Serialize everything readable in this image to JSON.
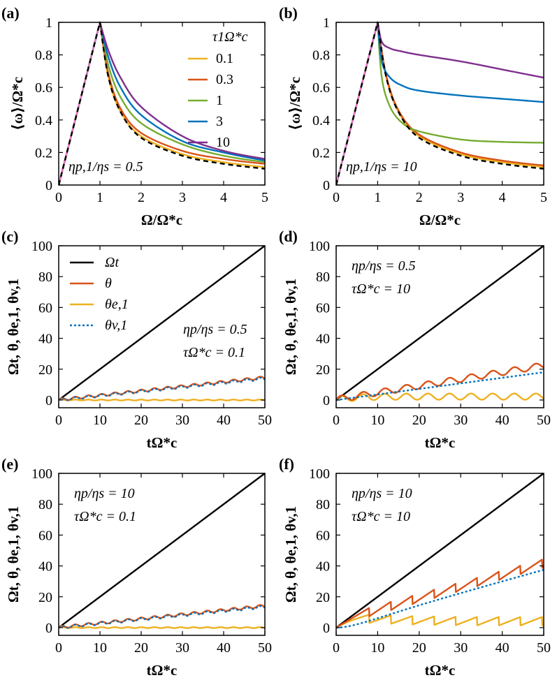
{
  "chart_data": [
    {
      "id": "a",
      "panel_label": "(a)",
      "type": "line",
      "xlabel": "Ω/Ω*c",
      "ylabel": "⟨ω⟩/Ω*c",
      "xlim": [
        0,
        5
      ],
      "ylim": [
        0,
        1
      ],
      "xticks": [
        "0",
        "1",
        "2",
        "3",
        "4",
        "5"
      ],
      "yticks": [
        "0",
        "0.2",
        "0.4",
        "0.6",
        "0.8",
        "1"
      ],
      "annotations": [
        "ηp,1/ηs = 0.5"
      ],
      "legend_title": "τ1Ω*c",
      "legend_position": "top-right",
      "series": [
        {
          "name": "0.1",
          "color": "#EDB120",
          "x": [
            0,
            1,
            1.2,
            1.5,
            2,
            3,
            4,
            5
          ],
          "y": [
            0,
            1,
            0.67,
            0.45,
            0.3,
            0.19,
            0.14,
            0.11
          ]
        },
        {
          "name": "0.3",
          "color": "#D95319",
          "x": [
            0,
            1,
            1.2,
            1.5,
            2,
            3,
            4,
            5
          ],
          "y": [
            0,
            1,
            0.69,
            0.47,
            0.32,
            0.21,
            0.16,
            0.13
          ]
        },
        {
          "name": "1",
          "color": "#77AC30",
          "x": [
            0,
            1,
            1.2,
            1.5,
            2,
            3,
            4,
            5
          ],
          "y": [
            0,
            1,
            0.74,
            0.54,
            0.38,
            0.25,
            0.18,
            0.14
          ]
        },
        {
          "name": "3",
          "color": "#0072BD",
          "x": [
            0,
            1,
            1.2,
            1.5,
            2,
            3,
            4,
            5
          ],
          "y": [
            0,
            1,
            0.79,
            0.6,
            0.43,
            0.27,
            0.2,
            0.15
          ]
        },
        {
          "name": "10",
          "color": "#7E2F8E",
          "x": [
            0,
            1,
            1.2,
            1.5,
            2,
            3,
            4,
            5
          ],
          "y": [
            0,
            1,
            0.83,
            0.66,
            0.48,
            0.3,
            0.21,
            0.16
          ]
        }
      ],
      "reference": {
        "name": "reference",
        "color": "#000000",
        "x": [
          0,
          1,
          1.2,
          1.5,
          2,
          3,
          4,
          5
        ],
        "y": [
          0,
          1,
          0.67,
          0.45,
          0.29,
          0.18,
          0.13,
          0.1
        ]
      }
    },
    {
      "id": "b",
      "panel_label": "(b)",
      "type": "line",
      "xlabel": "Ω/Ω*c",
      "ylabel": "⟨ω⟩/Ω*c",
      "xlim": [
        0,
        5
      ],
      "ylim": [
        0,
        1
      ],
      "xticks": [
        "0",
        "1",
        "2",
        "3",
        "4",
        "5"
      ],
      "yticks": [
        "0",
        "0.2",
        "0.4",
        "0.6",
        "0.8",
        "1"
      ],
      "annotations": [
        "ηp,1/ηs = 10"
      ],
      "series": [
        {
          "name": "0.1",
          "color": "#EDB120",
          "x": [
            0,
            1,
            1.2,
            1.5,
            2,
            3,
            4,
            5
          ],
          "y": [
            0,
            1,
            0.67,
            0.45,
            0.3,
            0.19,
            0.14,
            0.11
          ]
        },
        {
          "name": "0.3",
          "color": "#D95319",
          "x": [
            0,
            1,
            1.2,
            1.5,
            2,
            3,
            4,
            5
          ],
          "y": [
            0,
            1,
            0.68,
            0.46,
            0.31,
            0.2,
            0.15,
            0.12
          ]
        },
        {
          "name": "1",
          "color": "#77AC30",
          "x": [
            0,
            1,
            1.1,
            1.3,
            1.6,
            2,
            3,
            4,
            5
          ],
          "y": [
            0,
            1,
            0.66,
            0.48,
            0.38,
            0.33,
            0.28,
            0.265,
            0.26
          ]
        },
        {
          "name": "3",
          "color": "#0072BD",
          "x": [
            0,
            1,
            1.1,
            1.3,
            1.6,
            2,
            3,
            4,
            5
          ],
          "y": [
            0,
            1,
            0.76,
            0.66,
            0.61,
            0.58,
            0.55,
            0.53,
            0.51
          ]
        },
        {
          "name": "10",
          "color": "#7E2F8E",
          "x": [
            0,
            1,
            1.1,
            1.3,
            1.6,
            2,
            3,
            4,
            5
          ],
          "y": [
            0,
            1,
            0.88,
            0.84,
            0.82,
            0.8,
            0.76,
            0.71,
            0.66
          ]
        }
      ],
      "reference": {
        "name": "reference",
        "color": "#000000",
        "x": [
          0,
          1,
          1.2,
          1.5,
          2,
          3,
          4,
          5
        ],
        "y": [
          0,
          1,
          0.67,
          0.45,
          0.29,
          0.18,
          0.13,
          0.1
        ]
      }
    },
    {
      "id": "c",
      "panel_label": "(c)",
      "type": "line",
      "xlabel": "tΩ*c",
      "ylabel": "Ωt, θ, θe,1, θv,1",
      "xlim": [
        0,
        50
      ],
      "ylim": [
        -5,
        100
      ],
      "xticks": [
        "0",
        "10",
        "20",
        "30",
        "40",
        "50"
      ],
      "yticks": [
        "0",
        "20",
        "40",
        "60",
        "80",
        "100"
      ],
      "annotations": [
        "ηp/ηs = 0.5",
        "τΩ*c = 0.1"
      ],
      "legend_entries": [
        "Ωt",
        "θ",
        "θe,1",
        "θv,1"
      ],
      "legend_position": "top-left",
      "traces": {
        "theta_slope": 0.29,
        "theta_amp": 0.8,
        "theta_period": 3.2,
        "e_amp": 0.3,
        "v_slope": 0.28,
        "v_amp": 0.8,
        "sawtooth": false
      }
    },
    {
      "id": "d",
      "panel_label": "(d)",
      "type": "line",
      "xlabel": "tΩ*c",
      "ylabel": "Ωt, θ, θe,1, θv,1",
      "xlim": [
        0,
        50
      ],
      "ylim": [
        -5,
        100
      ],
      "xticks": [
        "0",
        "10",
        "20",
        "30",
        "40",
        "50"
      ],
      "yticks": [
        "0",
        "20",
        "40",
        "60",
        "80",
        "100"
      ],
      "annotations": [
        "ηp/ηs = 0.5",
        "τΩ*c = 10"
      ],
      "traces": {
        "theta_slope": 0.44,
        "theta_amp": 2.0,
        "theta_period": 5.2,
        "e_amp": 2.0,
        "v_slope": 0.36,
        "v_amp": 0,
        "sawtooth": false
      }
    },
    {
      "id": "e",
      "panel_label": "(e)",
      "type": "line",
      "xlabel": "tΩ*c",
      "ylabel": "Ωt, θ, θe,1, θv,1",
      "xlim": [
        0,
        50
      ],
      "ylim": [
        -5,
        100
      ],
      "xticks": [
        "0",
        "10",
        "20",
        "30",
        "40",
        "50"
      ],
      "yticks": [
        "0",
        "20",
        "40",
        "60",
        "80",
        "100"
      ],
      "annotations": [
        "ηp/ηs = 10",
        "τΩ*c = 0.1"
      ],
      "traces": {
        "theta_slope": 0.28,
        "theta_amp": 0.8,
        "theta_period": 3.2,
        "e_amp": 0.3,
        "v_slope": 0.27,
        "v_amp": 0.8,
        "sawtooth": false
      }
    },
    {
      "id": "f",
      "panel_label": "(f)",
      "type": "line",
      "xlabel": "tΩ*c",
      "ylabel": "Ωt, θ, θe,1, θv,1",
      "xlim": [
        0,
        50
      ],
      "ylim": [
        -5,
        100
      ],
      "xticks": [
        "0",
        "10",
        "20",
        "30",
        "40",
        "50"
      ],
      "yticks": [
        "0",
        "20",
        "40",
        "60",
        "80",
        "100"
      ],
      "annotations": [
        "ηp/ηs = 10",
        "τΩ*c = 10"
      ],
      "traces": {
        "theta_slope": 0.75,
        "v_slope": 0.75,
        "sawtooth": true,
        "period": 5.2,
        "start": 8,
        "drop": 5.5
      }
    }
  ],
  "colors": {
    "omega_t": "#000000",
    "theta": "#D95319",
    "theta_e": "#EDB120",
    "theta_v": "#0072BD"
  }
}
